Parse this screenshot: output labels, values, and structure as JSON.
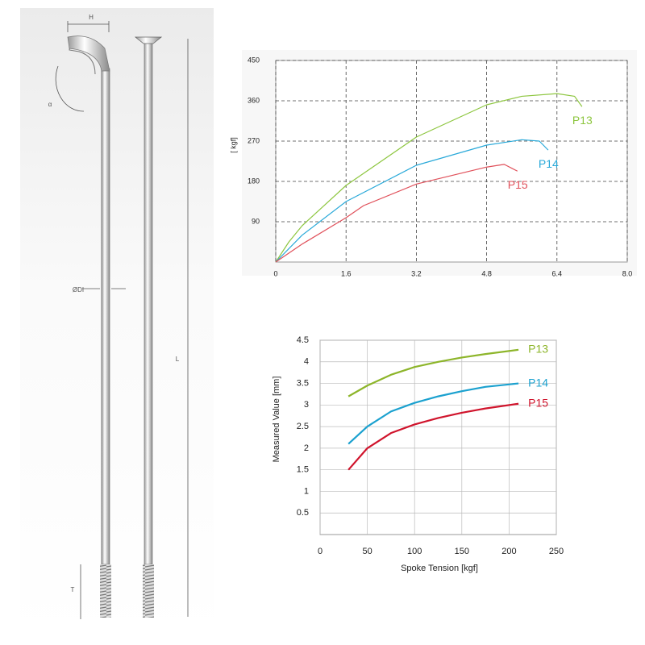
{
  "drawing": {
    "labels": {
      "h": "H",
      "alpha": "α",
      "diameter": "ØDI",
      "length": "L",
      "thread": "T"
    }
  },
  "chart_data": [
    {
      "type": "line",
      "y_label": "[ kgf]",
      "xlim": [
        0,
        8
      ],
      "xticks": [
        0,
        1.6,
        3.2,
        4.8,
        6.4,
        {
          "value": 8,
          "label": "8.0"
        }
      ],
      "ylim": [
        0,
        450
      ],
      "yticks": [
        90,
        180,
        270,
        360,
        450
      ],
      "grid": "dashed",
      "series": [
        {
          "name": "P13",
          "color": "#8dc63f",
          "x": [
            0,
            0.3,
            0.6,
            1.6,
            3.2,
            4.8,
            5.6,
            6.4,
            6.8,
            6.97
          ],
          "values": [
            0,
            45,
            81,
            171,
            279,
            351,
            370,
            376,
            370,
            347
          ]
        },
        {
          "name": "P14",
          "color": "#29a9d9",
          "x": [
            0,
            0.6,
            1.6,
            3.2,
            4.8,
            5.6,
            6.0,
            6.2
          ],
          "values": [
            0,
            60,
            135,
            216,
            261,
            273,
            270,
            250
          ]
        },
        {
          "name": "P15",
          "color": "#e0505a",
          "x": [
            0,
            0.6,
            1.6,
            2.0,
            3.2,
            4.8,
            5.2,
            5.5
          ],
          "values": [
            0,
            40,
            99,
            126,
            174,
            212,
            218,
            203
          ]
        }
      ]
    },
    {
      "type": "line",
      "x_label": "Spoke Tension [kgf]",
      "y_label": "Measured Value [mm]",
      "xlim": [
        0,
        250
      ],
      "xticks": [
        0,
        50,
        100,
        150,
        200,
        250
      ],
      "ylim": [
        0,
        4.5
      ],
      "yticks": [
        0.5,
        1,
        1.5,
        2,
        2.5,
        3,
        3.5,
        4,
        4.5
      ],
      "grid": "solid",
      "series": [
        {
          "name": "P13",
          "color": "#8db52a",
          "x": [
            30,
            50,
            75,
            100,
            125,
            150,
            175,
            210
          ],
          "values": [
            3.2,
            3.45,
            3.7,
            3.88,
            4.0,
            4.1,
            4.18,
            4.28
          ]
        },
        {
          "name": "P14",
          "color": "#1ba1cf",
          "x": [
            30,
            50,
            75,
            100,
            125,
            150,
            175,
            210
          ],
          "values": [
            2.1,
            2.5,
            2.85,
            3.05,
            3.2,
            3.32,
            3.42,
            3.5
          ]
        },
        {
          "name": "P15",
          "color": "#d0142c",
          "x": [
            30,
            50,
            75,
            100,
            125,
            150,
            175,
            210
          ],
          "values": [
            1.5,
            2.0,
            2.35,
            2.55,
            2.7,
            2.82,
            2.92,
            3.03
          ]
        }
      ]
    }
  ]
}
